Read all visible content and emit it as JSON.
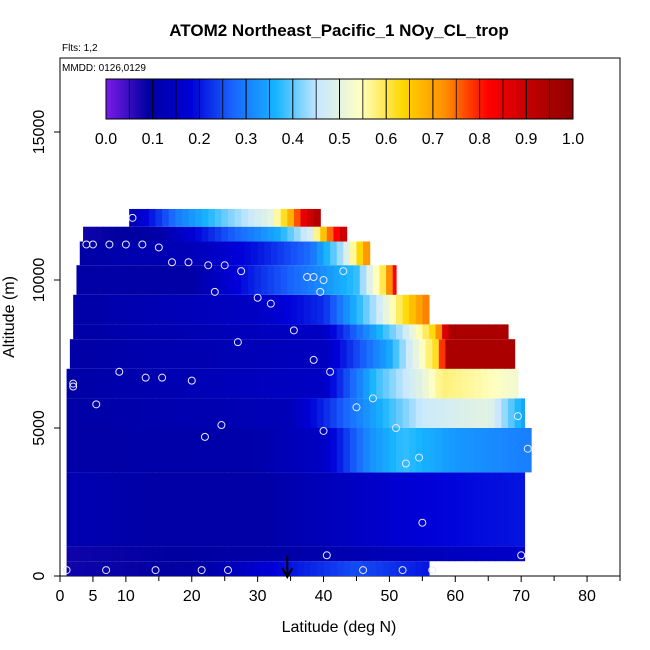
{
  "chart_data": {
    "type": "heatmap",
    "title": "ATOM2 Northeast_Pacific_1 NOy_CL_trop",
    "flights_note": "Flts: 1,2",
    "dates_note": "MMDD: 0126,0129",
    "xlabel": "Latitude (deg N)",
    "ylabel": "Altitude (m)",
    "xlim": [
      0,
      85
    ],
    "ylim": [
      0,
      17500
    ],
    "x_ticks": [
      0,
      5,
      10,
      20,
      30,
      40,
      50,
      60,
      70,
      80
    ],
    "y_ticks": [
      0,
      5000,
      10000,
      15000
    ],
    "colorbar": {
      "min": 0.0,
      "max": 1.0,
      "tick_values": [
        0.0,
        0.1,
        0.2,
        0.3,
        0.4,
        0.5,
        0.6,
        0.7,
        0.8,
        0.9,
        1.0
      ],
      "tick_labels": [
        "0.0",
        "0.1",
        "0.2",
        "0.3",
        "0.4",
        "0.5",
        "0.6",
        "0.7",
        "0.8",
        "0.9",
        "1.0"
      ],
      "colors": [
        "#7a1ce8",
        "#0000a0",
        "#0000d8",
        "#1a66ff",
        "#16b4ff",
        "#c8e8ff",
        "#ffffc0",
        "#ffd700",
        "#ff8c00",
        "#ff0000",
        "#c00000",
        "#900000"
      ]
    },
    "arrow_marker_latitude": 34.5,
    "profile_bands": [
      {
        "alt": [
          0,
          500
        ],
        "lat": [
          1,
          56
        ],
        "value_profile": [
          [
            1,
            0.08
          ],
          [
            20,
            0.09
          ],
          [
            35,
            0.2
          ],
          [
            45,
            0.25
          ],
          [
            56,
            0.2
          ]
        ]
      },
      {
        "alt": [
          500,
          1000
        ],
        "lat": [
          1,
          70.5
        ],
        "value_profile": [
          [
            1,
            0.08
          ],
          [
            30,
            0.1
          ],
          [
            45,
            0.12
          ],
          [
            60,
            0.14
          ],
          [
            70.5,
            0.16
          ]
        ]
      },
      {
        "alt": [
          1000,
          3500
        ],
        "lat": [
          1,
          70.5
        ],
        "value_profile": [
          [
            1,
            0.12
          ],
          [
            15,
            0.1
          ],
          [
            30,
            0.1
          ],
          [
            45,
            0.15
          ],
          [
            55,
            0.18
          ],
          [
            70.5,
            0.2
          ]
        ]
      },
      {
        "alt": [
          3500,
          5000
        ],
        "lat": [
          1,
          71.5
        ],
        "value_profile": [
          [
            1,
            0.1
          ],
          [
            30,
            0.11
          ],
          [
            40,
            0.15
          ],
          [
            47,
            0.32
          ],
          [
            52,
            0.38
          ],
          [
            60,
            0.33
          ],
          [
            71.5,
            0.3
          ]
        ]
      },
      {
        "alt": [
          5000,
          6000
        ],
        "lat": [
          1,
          70.5
        ],
        "value_profile": [
          [
            1,
            0.1
          ],
          [
            35,
            0.13
          ],
          [
            45,
            0.3
          ],
          [
            55,
            0.46
          ],
          [
            65,
            0.5
          ],
          [
            70.5,
            0.34
          ]
        ]
      },
      {
        "alt": [
          6000,
          7000
        ],
        "lat": [
          1,
          69.5
        ],
        "value_profile": [
          [
            1,
            0.1
          ],
          [
            40,
            0.15
          ],
          [
            48,
            0.38
          ],
          [
            55,
            0.5
          ],
          [
            58,
            0.58
          ],
          [
            65,
            0.55
          ],
          [
            69.5,
            0.52
          ]
        ]
      },
      {
        "alt": [
          7000,
          8000
        ],
        "lat": [
          1.5,
          69
        ],
        "value_profile": [
          [
            1.5,
            0.1
          ],
          [
            40,
            0.14
          ],
          [
            50,
            0.35
          ],
          [
            57,
            0.62
          ],
          [
            59,
            0.95
          ],
          [
            69,
            0.95
          ]
        ]
      },
      {
        "alt": [
          8000,
          8500
        ],
        "lat": [
          2,
          68
        ],
        "value_profile": [
          [
            2,
            0.1
          ],
          [
            40,
            0.15
          ],
          [
            52,
            0.45
          ],
          [
            57,
            0.65
          ],
          [
            59,
            0.95
          ],
          [
            68,
            0.95
          ]
        ]
      },
      {
        "alt": [
          8500,
          9500
        ],
        "lat": [
          2,
          56
        ],
        "value_profile": [
          [
            2,
            0.1
          ],
          [
            30,
            0.15
          ],
          [
            40,
            0.22
          ],
          [
            48,
            0.45
          ],
          [
            53,
            0.65
          ],
          [
            56,
            0.75
          ]
        ]
      },
      {
        "alt": [
          9500,
          10500
        ],
        "lat": [
          2.5,
          51
        ],
        "value_profile": [
          [
            2.5,
            0.1
          ],
          [
            20,
            0.1
          ],
          [
            30,
            0.22
          ],
          [
            38,
            0.3
          ],
          [
            45,
            0.38
          ],
          [
            49,
            0.6
          ],
          [
            51,
            0.85
          ]
        ]
      },
      {
        "alt": [
          10500,
          11300
        ],
        "lat": [
          3,
          47
        ],
        "value_profile": [
          [
            3,
            0.1
          ],
          [
            20,
            0.13
          ],
          [
            30,
            0.2
          ],
          [
            38,
            0.28
          ],
          [
            43,
            0.45
          ],
          [
            47,
            0.75
          ]
        ]
      },
      {
        "alt": [
          11300,
          11800
        ],
        "lat": [
          3.5,
          43.5
        ],
        "value_profile": [
          [
            3.5,
            0.08
          ],
          [
            15,
            0.1
          ],
          [
            25,
            0.25
          ],
          [
            33,
            0.35
          ],
          [
            38,
            0.48
          ],
          [
            41,
            0.75
          ],
          [
            43.5,
            0.92
          ]
        ]
      },
      {
        "alt": [
          11800,
          12400
        ],
        "lat": [
          10.5,
          39.5
        ],
        "value_profile": [
          [
            10.5,
            0.12
          ],
          [
            18,
            0.3
          ],
          [
            26,
            0.42
          ],
          [
            32,
            0.5
          ],
          [
            35,
            0.68
          ],
          [
            37,
            0.85
          ],
          [
            39.5,
            0.95
          ]
        ]
      }
    ],
    "sample_points": [
      [
        1,
        200
      ],
      [
        7,
        200
      ],
      [
        14.5,
        200
      ],
      [
        21.5,
        200
      ],
      [
        25.5,
        200
      ],
      [
        46,
        200
      ],
      [
        52,
        200
      ],
      [
        56.5,
        200
      ],
      [
        40.5,
        700
      ],
      [
        70,
        700
      ],
      [
        55,
        1800
      ],
      [
        52.5,
        3800
      ],
      [
        54.5,
        4000
      ],
      [
        71,
        4300
      ],
      [
        22,
        4700
      ],
      [
        24.5,
        5100
      ],
      [
        40,
        4900
      ],
      [
        51,
        5000
      ],
      [
        69.5,
        5400
      ],
      [
        45,
        5700
      ],
      [
        47.5,
        6000
      ],
      [
        5.5,
        5800
      ],
      [
        2,
        6400
      ],
      [
        2,
        6500
      ],
      [
        9,
        6900
      ],
      [
        13,
        6700
      ],
      [
        15.5,
        6700
      ],
      [
        20,
        6600
      ],
      [
        41,
        6900
      ],
      [
        38.5,
        7300
      ],
      [
        54,
        7200
      ],
      [
        27,
        7900
      ],
      [
        35.5,
        8300
      ],
      [
        30,
        9400
      ],
      [
        32,
        9200
      ],
      [
        39.5,
        9600
      ],
      [
        23.5,
        9600
      ],
      [
        49,
        9100
      ],
      [
        17,
        10600
      ],
      [
        19.5,
        10600
      ],
      [
        22.5,
        10500
      ],
      [
        25,
        10500
      ],
      [
        27.5,
        10300
      ],
      [
        37.5,
        10100
      ],
      [
        38.5,
        10100
      ],
      [
        40,
        10000
      ],
      [
        43,
        10300
      ],
      [
        4,
        11200
      ],
      [
        5,
        11200
      ],
      [
        7.5,
        11200
      ],
      [
        10,
        11200
      ],
      [
        12.5,
        11200
      ],
      [
        15,
        11100
      ],
      [
        11,
        12100
      ]
    ]
  }
}
